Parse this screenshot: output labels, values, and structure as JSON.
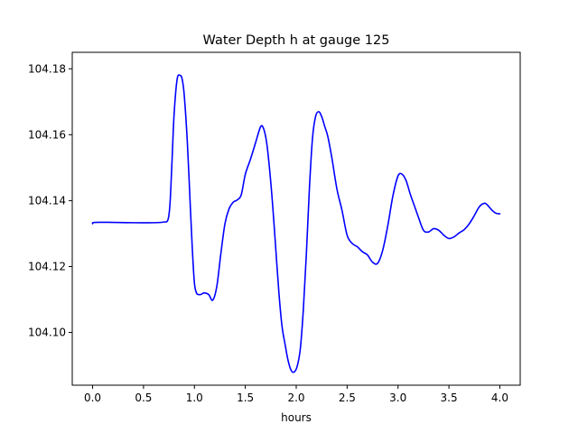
{
  "chart_data": {
    "type": "line",
    "title": "Water Depth h at gauge 125",
    "xlabel": "hours",
    "ylabel": "",
    "xlim": [
      -0.2,
      4.2
    ],
    "ylim": [
      104.084,
      104.185
    ],
    "xticks": [
      0.0,
      0.5,
      1.0,
      1.5,
      2.0,
      2.5,
      3.0,
      3.5,
      4.0
    ],
    "xtick_labels": [
      "0.0",
      "0.5",
      "1.0",
      "1.5",
      "2.0",
      "2.5",
      "3.0",
      "3.5",
      "4.0"
    ],
    "yticks": [
      104.1,
      104.12,
      104.14,
      104.16,
      104.18
    ],
    "ytick_labels": [
      "104.10",
      "104.12",
      "104.14",
      "104.16",
      "104.18"
    ],
    "grid": false,
    "series": [
      {
        "name": "",
        "color": "#0000ff",
        "x": [
          0.0,
          0.02,
          0.2,
          0.4,
          0.6,
          0.7,
          0.74,
          0.76,
          0.78,
          0.8,
          0.83,
          0.86,
          0.88,
          0.9,
          0.93,
          0.96,
          0.98,
          1.0,
          1.02,
          1.04,
          1.06,
          1.08,
          1.1,
          1.14,
          1.18,
          1.22,
          1.26,
          1.3,
          1.34,
          1.38,
          1.42,
          1.46,
          1.5,
          1.55,
          1.6,
          1.65,
          1.68,
          1.71,
          1.74,
          1.77,
          1.8,
          1.83,
          1.86,
          1.89,
          1.92,
          1.95,
          1.98,
          2.01,
          2.04,
          2.07,
          2.1,
          2.13,
          2.16,
          2.19,
          2.22,
          2.25,
          2.28,
          2.31,
          2.35,
          2.4,
          2.45,
          2.5,
          2.55,
          2.6,
          2.65,
          2.7,
          2.75,
          2.8,
          2.85,
          2.9,
          2.95,
          3.0,
          3.04,
          3.08,
          3.12,
          3.16,
          3.2,
          3.25,
          3.3,
          3.35,
          3.4,
          3.45,
          3.5,
          3.55,
          3.6,
          3.65,
          3.7,
          3.75,
          3.8,
          3.85,
          3.88,
          3.92,
          3.96,
          4.0
        ],
        "y": [
          104.133,
          104.1334,
          104.1334,
          104.1333,
          104.1333,
          104.1335,
          104.1342,
          104.139,
          104.152,
          104.166,
          104.1768,
          104.178,
          104.1768,
          104.172,
          104.158,
          104.138,
          104.125,
          104.115,
          104.112,
          104.1115,
          104.1115,
          104.1118,
          104.112,
          104.1115,
          104.1098,
          104.114,
          104.124,
          104.133,
          104.1375,
          104.1395,
          104.1402,
          104.1418,
          104.148,
          104.1525,
          104.1575,
          104.1624,
          104.1618,
          104.1575,
          104.149,
          104.138,
          104.125,
          104.112,
          104.102,
          104.0965,
          104.0915,
          104.0885,
          104.088,
          104.0898,
          104.095,
          104.107,
          104.124,
          104.144,
          104.159,
          104.1655,
          104.167,
          104.1655,
          104.1625,
          104.1595,
          104.153,
          104.1435,
          104.137,
          104.1295,
          104.127,
          104.126,
          104.1245,
          104.1235,
          104.1213,
          104.121,
          104.125,
          104.1325,
          104.1415,
          104.1475,
          104.148,
          104.146,
          104.142,
          104.1385,
          104.135,
          104.131,
          104.1305,
          104.1315,
          104.131,
          104.1295,
          104.1285,
          104.129,
          104.1302,
          104.1312,
          104.133,
          104.1355,
          104.1382,
          104.1392,
          104.1386,
          104.1372,
          104.1362,
          104.136
        ]
      }
    ]
  }
}
